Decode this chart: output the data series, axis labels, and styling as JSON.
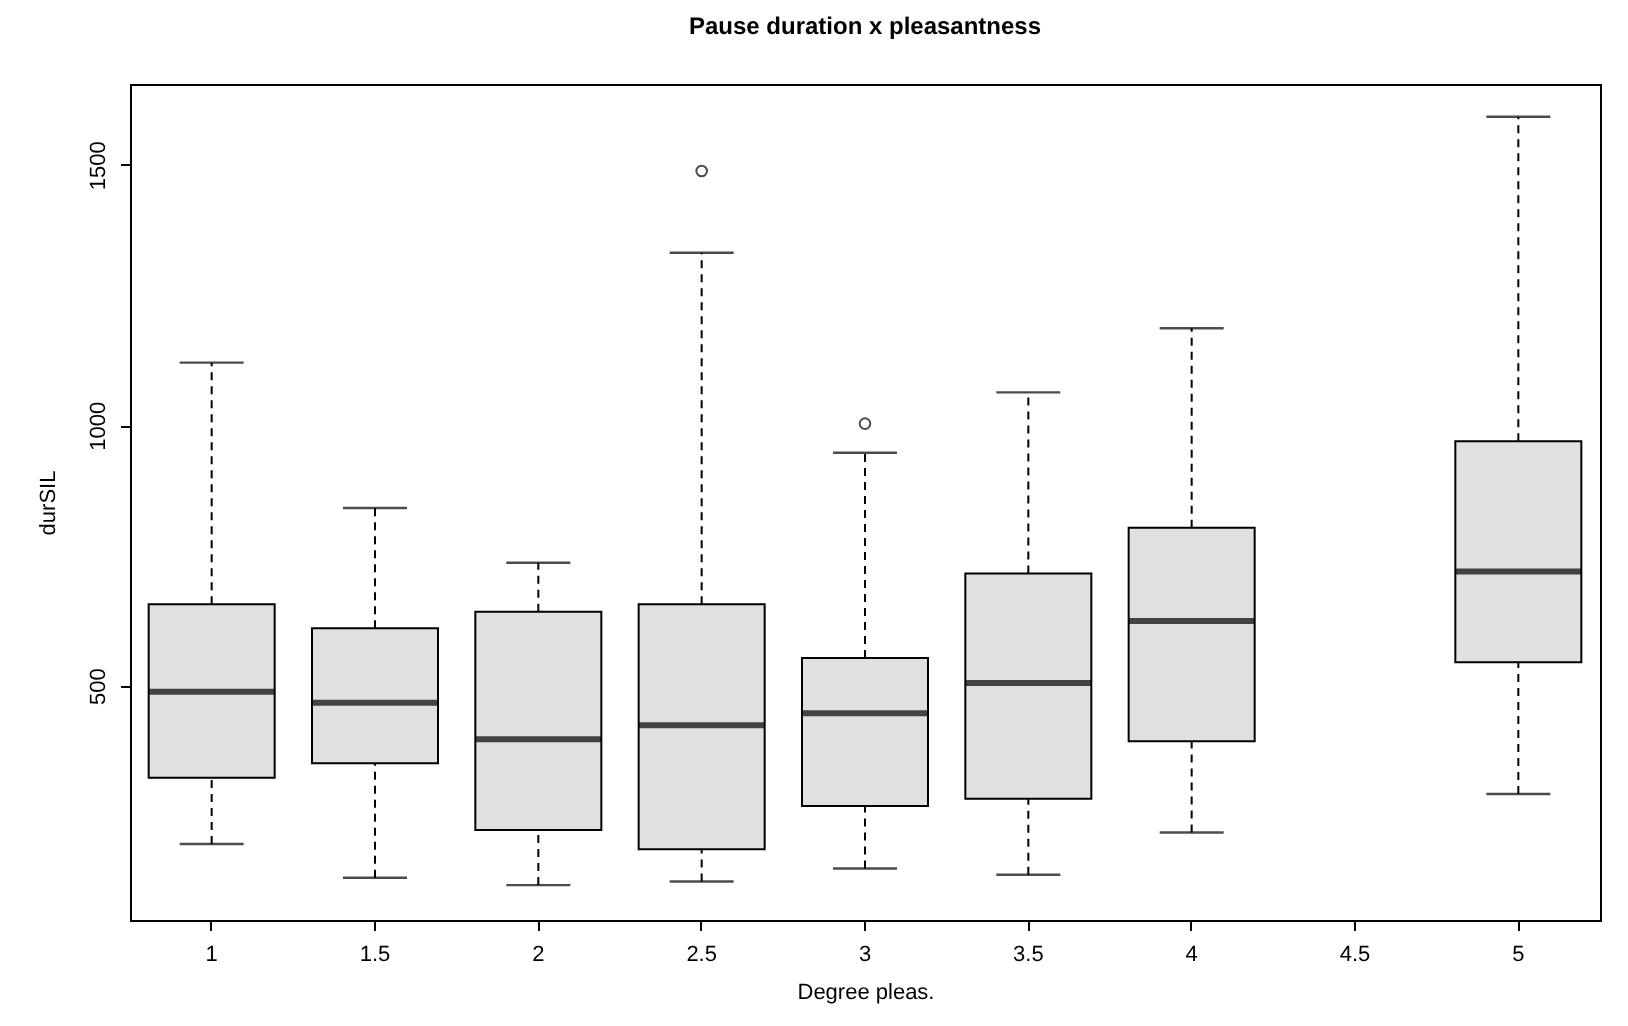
{
  "chart_data": {
    "type": "box",
    "title": "Pause duration x pleasantness",
    "xlabel": "Degree pleas.",
    "ylabel": "durSIL",
    "categories": [
      "1",
      "1.5",
      "2",
      "2.5",
      "3",
      "3.5",
      "4",
      "4.5",
      "5"
    ],
    "boxes": [
      {
        "low": 196,
        "q1": 323,
        "median": 488,
        "q3": 656,
        "high": 1120
      },
      {
        "low": 131,
        "q1": 351,
        "median": 467,
        "q3": 610,
        "high": 841
      },
      {
        "low": 117,
        "q1": 223,
        "median": 397,
        "q3": 642,
        "high": 736
      },
      {
        "low": 124,
        "q1": 186,
        "median": 424,
        "q3": 656,
        "high": 1331,
        "outliers": [
          1488
        ]
      },
      {
        "low": 149,
        "q1": 269,
        "median": 447,
        "q3": 553,
        "high": 947,
        "outliers": [
          1003
        ]
      },
      {
        "low": 137,
        "q1": 283,
        "median": 505,
        "q3": 715,
        "high": 1063
      },
      {
        "low": 218,
        "q1": 393,
        "median": 624,
        "q3": 803,
        "high": 1186
      },
      null,
      {
        "low": 292,
        "q1": 545,
        "median": 719,
        "q3": 969,
        "high": 1592
      }
    ],
    "color": "#e0e0e0",
    "ylim": [
      50,
      1655
    ],
    "yticks": [
      500,
      1000,
      1500
    ],
    "grid": false
  }
}
